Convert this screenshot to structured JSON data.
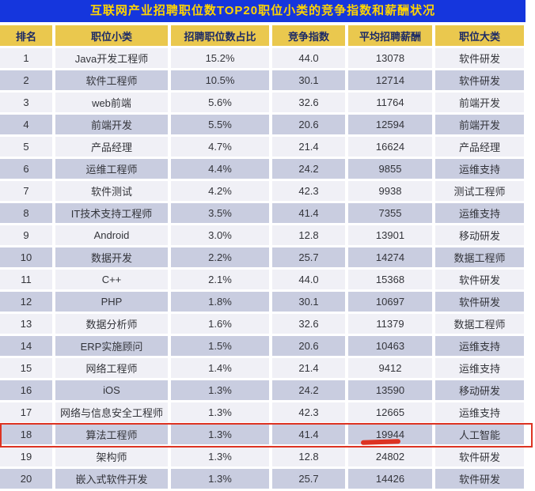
{
  "title": "互联网产业招聘职位数TOP20职位小类的竞争指数和薪酬状况",
  "colors": {
    "title_bar_bg": "#1536dd",
    "title_text": "#ffd400",
    "header_bg": "#eac84e",
    "header_text": "#1c2a66",
    "row_odd_bg": "#f0f0f6",
    "row_even_bg": "#c9cde0",
    "cell_text": "#33343a",
    "annotation_red": "#dd3322"
  },
  "annotations": {
    "highlighted_row_rank": "18",
    "highlighted_job": "算法工程师",
    "underlined_value": "19944",
    "marks": [
      "red-box-around-row-18",
      "red-underline-under-19944"
    ]
  },
  "chart_data": {
    "type": "table",
    "title": "互联网产业招聘职位数TOP20职位小类的竞争指数和薪酬状况",
    "columns": [
      "排名",
      "职位小类",
      "招聘职位数占比",
      "竞争指数",
      "平均招聘薪酬",
      "职位大类"
    ],
    "rows": [
      [
        "1",
        "Java开发工程师",
        "15.2%",
        "44.0",
        "13078",
        "软件研发"
      ],
      [
        "2",
        "软件工程师",
        "10.5%",
        "30.1",
        "12714",
        "软件研发"
      ],
      [
        "3",
        "web前端",
        "5.6%",
        "32.6",
        "11764",
        "前端开发"
      ],
      [
        "4",
        "前端开发",
        "5.5%",
        "20.6",
        "12594",
        "前端开发"
      ],
      [
        "5",
        "产品经理",
        "4.7%",
        "21.4",
        "16624",
        "产品经理"
      ],
      [
        "6",
        "运维工程师",
        "4.4%",
        "24.2",
        "9855",
        "运维支持"
      ],
      [
        "7",
        "软件测试",
        "4.2%",
        "42.3",
        "9938",
        "测试工程师"
      ],
      [
        "8",
        "IT技术支持工程师",
        "3.5%",
        "41.4",
        "7355",
        "运维支持"
      ],
      [
        "9",
        "Android",
        "3.0%",
        "12.8",
        "13901",
        "移动研发"
      ],
      [
        "10",
        "数据开发",
        "2.2%",
        "25.7",
        "14274",
        "数据工程师"
      ],
      [
        "11",
        "C++",
        "2.1%",
        "44.0",
        "15368",
        "软件研发"
      ],
      [
        "12",
        "PHP",
        "1.8%",
        "30.1",
        "10697",
        "软件研发"
      ],
      [
        "13",
        "数据分析师",
        "1.6%",
        "32.6",
        "11379",
        "数据工程师"
      ],
      [
        "14",
        "ERP实施顾问",
        "1.5%",
        "20.6",
        "10463",
        "运维支持"
      ],
      [
        "15",
        "网络工程师",
        "1.4%",
        "21.4",
        "9412",
        "运维支持"
      ],
      [
        "16",
        "iOS",
        "1.3%",
        "24.2",
        "13590",
        "移动研发"
      ],
      [
        "17",
        "网络与信息安全工程师",
        "1.3%",
        "42.3",
        "12665",
        "运维支持"
      ],
      [
        "18",
        "算法工程师",
        "1.3%",
        "41.4",
        "19944",
        "人工智能"
      ],
      [
        "19",
        "架构师",
        "1.3%",
        "12.8",
        "24802",
        "软件研发"
      ],
      [
        "20",
        "嵌入式软件开发",
        "1.3%",
        "25.7",
        "14426",
        "软件研发"
      ]
    ]
  }
}
